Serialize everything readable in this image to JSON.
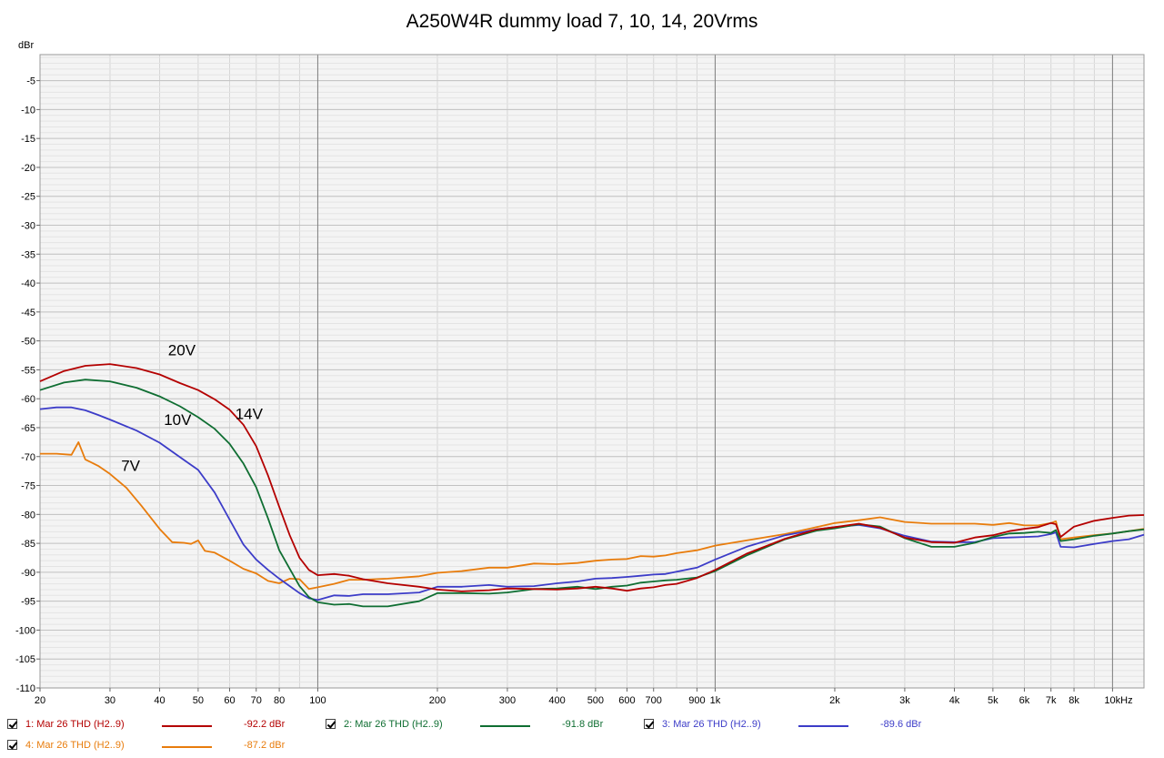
{
  "chart_data": {
    "type": "line",
    "title": "A250W4R dummy load 7, 10, 14, 20Vrms",
    "ylabel": "dBr",
    "xscale": "log",
    "xlim": [
      20,
      12000
    ],
    "ylim": [
      -110,
      -0.5
    ],
    "grid": true,
    "x_tick_labels": [
      {
        "v": 20,
        "t": "20"
      },
      {
        "v": 30,
        "t": "30"
      },
      {
        "v": 40,
        "t": "40"
      },
      {
        "v": 50,
        "t": "50"
      },
      {
        "v": 60,
        "t": "60"
      },
      {
        "v": 70,
        "t": "70"
      },
      {
        "v": 80,
        "t": "80"
      },
      {
        "v": 100,
        "t": "100"
      },
      {
        "v": 200,
        "t": "200"
      },
      {
        "v": 300,
        "t": "300"
      },
      {
        "v": 400,
        "t": "400"
      },
      {
        "v": 500,
        "t": "500"
      },
      {
        "v": 600,
        "t": "600"
      },
      {
        "v": 700,
        "t": "700"
      },
      {
        "v": 900,
        "t": "900"
      },
      {
        "v": 1000,
        "t": "1k"
      },
      {
        "v": 2000,
        "t": "2k"
      },
      {
        "v": 3000,
        "t": "3k"
      },
      {
        "v": 4000,
        "t": "4k"
      },
      {
        "v": 5000,
        "t": "5k"
      },
      {
        "v": 6000,
        "t": "6k"
      },
      {
        "v": 7000,
        "t": "7k"
      },
      {
        "v": 8000,
        "t": "8k"
      },
      {
        "v": 10000,
        "t": "10kHz"
      }
    ],
    "y_tick_labels": [
      {
        "v": -5,
        "t": "-5"
      },
      {
        "v": -10,
        "t": "-10"
      },
      {
        "v": -15,
        "t": "-15"
      },
      {
        "v": -20,
        "t": "-20"
      },
      {
        "v": -25,
        "t": "-25"
      },
      {
        "v": -30,
        "t": "-30"
      },
      {
        "v": -35,
        "t": "-35"
      },
      {
        "v": -40,
        "t": "-40"
      },
      {
        "v": -45,
        "t": "-45"
      },
      {
        "v": -50,
        "t": "-50"
      },
      {
        "v": -55,
        "t": "-55"
      },
      {
        "v": -60,
        "t": "-60"
      },
      {
        "v": -65,
        "t": "-65"
      },
      {
        "v": -70,
        "t": "-70"
      },
      {
        "v": -75,
        "t": "-75"
      },
      {
        "v": -80,
        "t": "-80"
      },
      {
        "v": -85,
        "t": "-85"
      },
      {
        "v": -90,
        "t": "-90"
      },
      {
        "v": -95,
        "t": "-95"
      },
      {
        "v": -100,
        "t": "-100"
      },
      {
        "v": -105,
        "t": "-105"
      },
      {
        "v": -110,
        "t": "-110"
      }
    ],
    "annotations": [
      {
        "text": "20V",
        "x": 42,
        "y": -52.5
      },
      {
        "text": "14V",
        "x": 62,
        "y": -63.5
      },
      {
        "text": "10V",
        "x": 41,
        "y": -64.5
      },
      {
        "text": "7V",
        "x": 32,
        "y": -72.5
      }
    ],
    "series": [
      {
        "name": "1: Mar 26 THD (H2..9)",
        "color": "#b40000",
        "value_label": "-92.2 dBr",
        "x": [
          20,
          23,
          26,
          30,
          35,
          40,
          45,
          50,
          55,
          60,
          65,
          70,
          75,
          80,
          85,
          90,
          95,
          100,
          110,
          120,
          130,
          150,
          180,
          200,
          230,
          270,
          300,
          350,
          400,
          450,
          500,
          550,
          600,
          650,
          700,
          750,
          800,
          900,
          1000,
          1200,
          1500,
          1800,
          2000,
          2300,
          2600,
          3000,
          3500,
          4000,
          4500,
          5000,
          5500,
          6000,
          6500,
          7000,
          7200,
          7400,
          8000,
          9000,
          10000,
          11000,
          12000
        ],
        "y": [
          -57,
          -55.2,
          -54.3,
          -54,
          -54.7,
          -55.8,
          -57.3,
          -58.5,
          -60.1,
          -61.9,
          -64.5,
          -68.2,
          -73.3,
          -78.7,
          -83.6,
          -87.5,
          -89.6,
          -90.5,
          -90.3,
          -90.6,
          -91.2,
          -91.9,
          -92.5,
          -93,
          -93.3,
          -93.1,
          -92.8,
          -92.9,
          -93,
          -92.8,
          -92.5,
          -92.8,
          -93.2,
          -92.8,
          -92.6,
          -92.2,
          -92,
          -91,
          -89.6,
          -86.8,
          -84.2,
          -82.6,
          -82.2,
          -81.6,
          -82.3,
          -84,
          -84.8,
          -84.9,
          -84,
          -83.6,
          -82.9,
          -82.5,
          -82.2,
          -81.5,
          -81.7,
          -83.9,
          -82.1,
          -81.1,
          -80.6,
          -80.2,
          -80.1
        ]
      },
      {
        "name": "2: Mar 26 THD (H2..9)",
        "color": "#0f6e32",
        "value_label": "-91.8 dBr",
        "x": [
          20,
          23,
          26,
          30,
          35,
          40,
          45,
          50,
          55,
          60,
          65,
          70,
          75,
          80,
          85,
          90,
          95,
          100,
          110,
          120,
          130,
          150,
          180,
          200,
          230,
          270,
          300,
          350,
          400,
          450,
          500,
          550,
          600,
          650,
          700,
          750,
          800,
          900,
          1000,
          1200,
          1500,
          1800,
          2000,
          2300,
          2600,
          3000,
          3500,
          4000,
          4500,
          5000,
          5500,
          6000,
          6500,
          7000,
          7200,
          7400,
          8000,
          9000,
          10000,
          11000,
          12000
        ],
        "y": [
          -58.5,
          -57.2,
          -56.7,
          -57,
          -58.1,
          -59.6,
          -61.3,
          -63.2,
          -65.2,
          -67.8,
          -71.2,
          -75.3,
          -80.7,
          -86.2,
          -89.4,
          -92.4,
          -94.3,
          -95.2,
          -95.6,
          -95.5,
          -95.9,
          -95.9,
          -95,
          -93.6,
          -93.6,
          -93.7,
          -93.5,
          -92.9,
          -92.8,
          -92.5,
          -92.9,
          -92.5,
          -92.3,
          -91.8,
          -91.6,
          -91.4,
          -91.3,
          -90.9,
          -89.8,
          -87.1,
          -84.3,
          -82.8,
          -82.4,
          -81.7,
          -82.1,
          -84.1,
          -85.6,
          -85.6,
          -84.9,
          -83.9,
          -83.3,
          -83.2,
          -83,
          -83.2,
          -82.7,
          -84.6,
          -84.3,
          -83.7,
          -83.3,
          -82.9,
          -82.6
        ]
      },
      {
        "name": "3: Mar 26 THD (H2..9)",
        "color": "#3c3cc8",
        "value_label": "-89.6 dBr",
        "x": [
          20,
          22,
          24,
          26,
          28,
          30,
          35,
          40,
          45,
          50,
          55,
          60,
          65,
          70,
          75,
          80,
          85,
          90,
          95,
          100,
          110,
          120,
          130,
          150,
          180,
          200,
          230,
          270,
          300,
          350,
          400,
          450,
          500,
          550,
          600,
          650,
          700,
          750,
          800,
          900,
          1000,
          1200,
          1500,
          1800,
          2000,
          2300,
          2600,
          3000,
          3500,
          4000,
          4500,
          5000,
          5500,
          6000,
          6500,
          7000,
          7200,
          7400,
          8000,
          9000,
          10000,
          11000,
          12000
        ],
        "y": [
          -61.8,
          -61.5,
          -61.5,
          -62,
          -62.8,
          -63.6,
          -65.5,
          -67.6,
          -70.1,
          -72.3,
          -76.2,
          -80.9,
          -85.2,
          -87.8,
          -89.6,
          -91.1,
          -92.4,
          -93.6,
          -94.5,
          -94.8,
          -94,
          -94.1,
          -93.8,
          -93.8,
          -93.5,
          -92.5,
          -92.5,
          -92.2,
          -92.5,
          -92.4,
          -91.9,
          -91.6,
          -91.1,
          -91,
          -90.8,
          -90.6,
          -90.4,
          -90.3,
          -89.9,
          -89.2,
          -87.8,
          -85.6,
          -83.6,
          -82.6,
          -82.2,
          -81.8,
          -82.4,
          -83.7,
          -84.7,
          -84.8,
          -84.8,
          -84.1,
          -84,
          -83.9,
          -83.8,
          -83.4,
          -83.1,
          -85.6,
          -85.7,
          -85.1,
          -84.6,
          -84.3,
          -83.5
        ]
      },
      {
        "name": "4: Mar 26 THD (H2..9)",
        "color": "#e87c0c",
        "value_label": "-87.2 dBr",
        "x": [
          20,
          22,
          24,
          25,
          26,
          28,
          30,
          33,
          36,
          40,
          43,
          46,
          48,
          50,
          52,
          55,
          60,
          65,
          70,
          75,
          80,
          85,
          90,
          95,
          100,
          110,
          120,
          130,
          150,
          180,
          200,
          230,
          270,
          300,
          350,
          400,
          450,
          500,
          550,
          600,
          650,
          700,
          750,
          800,
          900,
          1000,
          1200,
          1500,
          1800,
          2000,
          2300,
          2600,
          3000,
          3500,
          4000,
          4500,
          5000,
          5500,
          6000,
          6500,
          7000,
          7200,
          7400,
          8000,
          9000,
          10000,
          11000,
          12000
        ],
        "y": [
          -69.5,
          -69.5,
          -69.7,
          -67.5,
          -70.5,
          -71.6,
          -73,
          -75.4,
          -78.5,
          -82.5,
          -84.8,
          -84.9,
          -85.1,
          -84.5,
          -86.3,
          -86.6,
          -88,
          -89.4,
          -90.2,
          -91.5,
          -91.9,
          -91.1,
          -91.2,
          -92.9,
          -92.6,
          -92,
          -91.3,
          -91.3,
          -91.1,
          -90.7,
          -90.1,
          -89.8,
          -89.2,
          -89.2,
          -88.5,
          -88.6,
          -88.4,
          -88,
          -87.8,
          -87.7,
          -87.2,
          -87.3,
          -87.1,
          -86.7,
          -86.2,
          -85.4,
          -84.5,
          -83.4,
          -82.2,
          -81.5,
          -81,
          -80.5,
          -81.3,
          -81.6,
          -81.6,
          -81.6,
          -81.8,
          -81.5,
          -81.9,
          -81.9,
          -81.5,
          -81.2,
          -84.3,
          -84,
          -83.6,
          -83.3,
          -82.9,
          -82.5
        ]
      }
    ]
  }
}
